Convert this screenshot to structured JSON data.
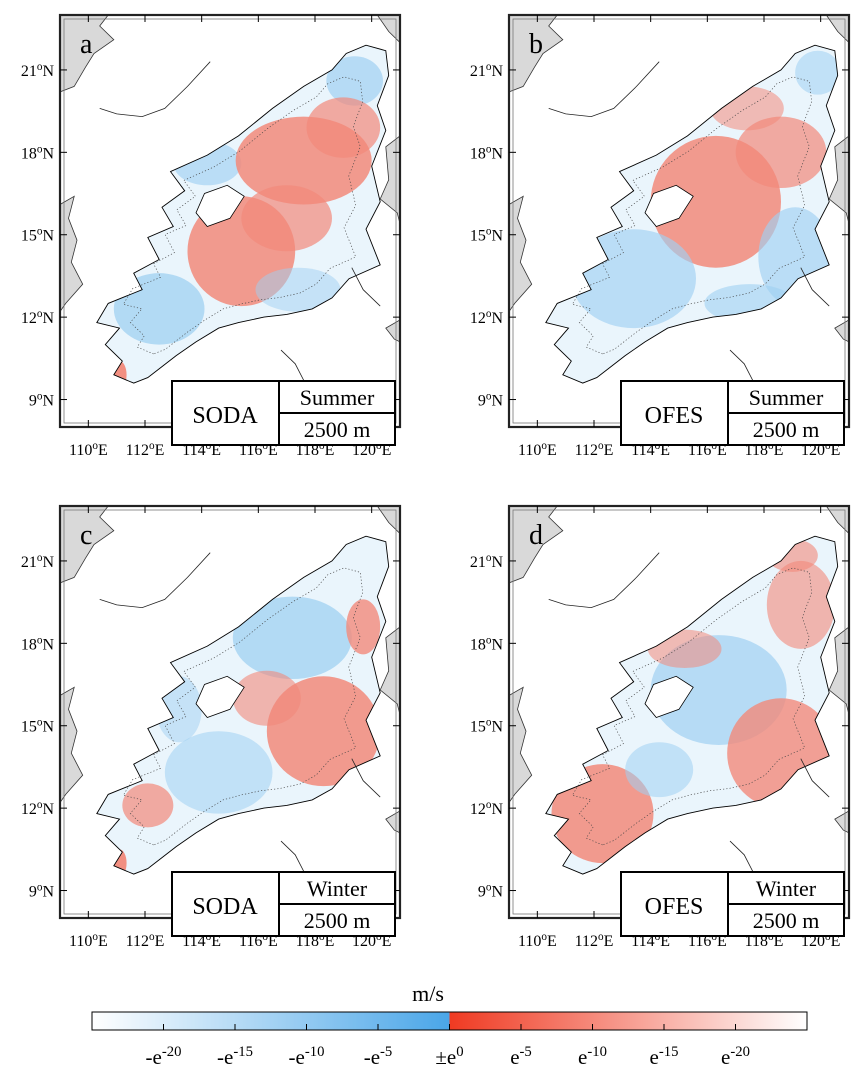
{
  "panels": [
    {
      "letter": "a",
      "model": "SODA",
      "season": "Summer",
      "depth": "2500 m",
      "pattern": "soda-summer"
    },
    {
      "letter": "b",
      "model": "OFES",
      "season": "Summer",
      "depth": "2500 m",
      "pattern": "ofes-summer"
    },
    {
      "letter": "c",
      "model": "SODA",
      "season": "Winter",
      "depth": "2500 m",
      "pattern": "soda-winter"
    },
    {
      "letter": "d",
      "model": "OFES",
      "season": "Winter",
      "depth": "2500 m",
      "pattern": "ofes-winter"
    }
  ],
  "lon_ticks": [
    {
      "value": 110,
      "base": "110",
      "sup": "o",
      "tail": "E"
    },
    {
      "value": 112,
      "base": "112",
      "sup": "o",
      "tail": "E"
    },
    {
      "value": 114,
      "base": "114",
      "sup": "o",
      "tail": "E"
    },
    {
      "value": 116,
      "base": "116",
      "sup": "o",
      "tail": "E"
    },
    {
      "value": 118,
      "base": "118",
      "sup": "o",
      "tail": "E"
    },
    {
      "value": 120,
      "base": "120",
      "sup": "o",
      "tail": "E"
    }
  ],
  "lat_ticks": [
    {
      "value": 9,
      "base": "9",
      "sup": "o",
      "tail": "N"
    },
    {
      "value": 12,
      "base": "12",
      "sup": "o",
      "tail": "N"
    },
    {
      "value": 15,
      "base": "15",
      "sup": "o",
      "tail": "N"
    },
    {
      "value": 18,
      "base": "18",
      "sup": "o",
      "tail": "N"
    },
    {
      "value": 21,
      "base": "21",
      "sup": "o",
      "tail": "N"
    }
  ],
  "lon_range": [
    109,
    121
  ],
  "lat_range": [
    8,
    23
  ],
  "colorbar": {
    "unit": "m/s",
    "negative_color": "#4aa6e8",
    "positive_color": "#ef3a22",
    "ticks": [
      {
        "base": "-e",
        "sup": "-20"
      },
      {
        "base": "-e",
        "sup": "-15"
      },
      {
        "base": "-e",
        "sup": "-10"
      },
      {
        "base": "-e",
        "sup": "-5"
      },
      {
        "base": "±e",
        "sup": "0"
      },
      {
        "base": "e",
        "sup": "-5"
      },
      {
        "base": "e",
        "sup": "-10"
      },
      {
        "base": "e",
        "sup": "-15"
      },
      {
        "base": "e",
        "sup": "-20"
      }
    ]
  },
  "colors": {
    "land": "#d9d9d9",
    "blue": "#9fd0f2",
    "red": "#f2897a",
    "frame": "#222222"
  }
}
